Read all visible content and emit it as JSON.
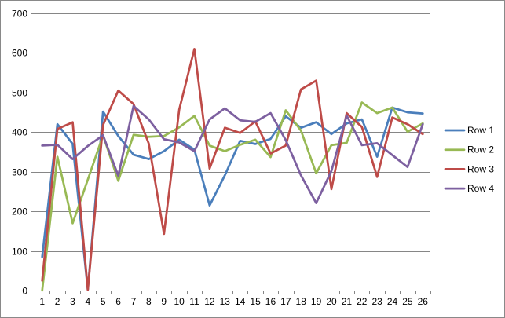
{
  "chart_data": {
    "type": "line",
    "title": "",
    "xlabel": "",
    "ylabel": "",
    "ylim": [
      0,
      700
    ],
    "yticks": [
      0,
      100,
      200,
      300,
      400,
      500,
      600,
      700
    ],
    "grid": true,
    "legend_position": "right",
    "x": [
      1,
      2,
      3,
      4,
      5,
      6,
      7,
      8,
      9,
      10,
      11,
      12,
      13,
      14,
      15,
      16,
      17,
      18,
      19,
      20,
      21,
      22,
      23,
      24,
      25,
      26
    ],
    "series": [
      {
        "name": "Row 1",
        "color": "#4a7ebb",
        "values": [
          85,
          420,
          370,
          2,
          452,
          390,
          343,
          332,
          352,
          381,
          356,
          215,
          291,
          378,
          370,
          383,
          440,
          411,
          425,
          395,
          422,
          432,
          338,
          462,
          450,
          447
        ]
      },
      {
        "name": "Row 2",
        "color": "#98b954",
        "values": [
          0,
          338,
          170,
          280,
          392,
          277,
          393,
          388,
          390,
          412,
          441,
          366,
          352,
          368,
          381,
          337,
          455,
          404,
          296,
          367,
          373,
          475,
          448,
          462,
          401,
          422
        ]
      },
      {
        "name": "Row 3",
        "color": "#be4b48",
        "values": [
          25,
          408,
          425,
          2,
          418,
          505,
          471,
          371,
          143,
          457,
          610,
          308,
          411,
          398,
          427,
          346,
          366,
          508,
          530,
          256,
          448,
          413,
          287,
          437,
          420,
          395
        ]
      },
      {
        "name": "Row 4",
        "color": "#7d60a0",
        "values": [
          366,
          368,
          332,
          365,
          392,
          290,
          466,
          432,
          382,
          374,
          352,
          432,
          460,
          430,
          426,
          448,
          380,
          291,
          221,
          302,
          442,
          367,
          372,
          342,
          312,
          420
        ]
      }
    ]
  }
}
